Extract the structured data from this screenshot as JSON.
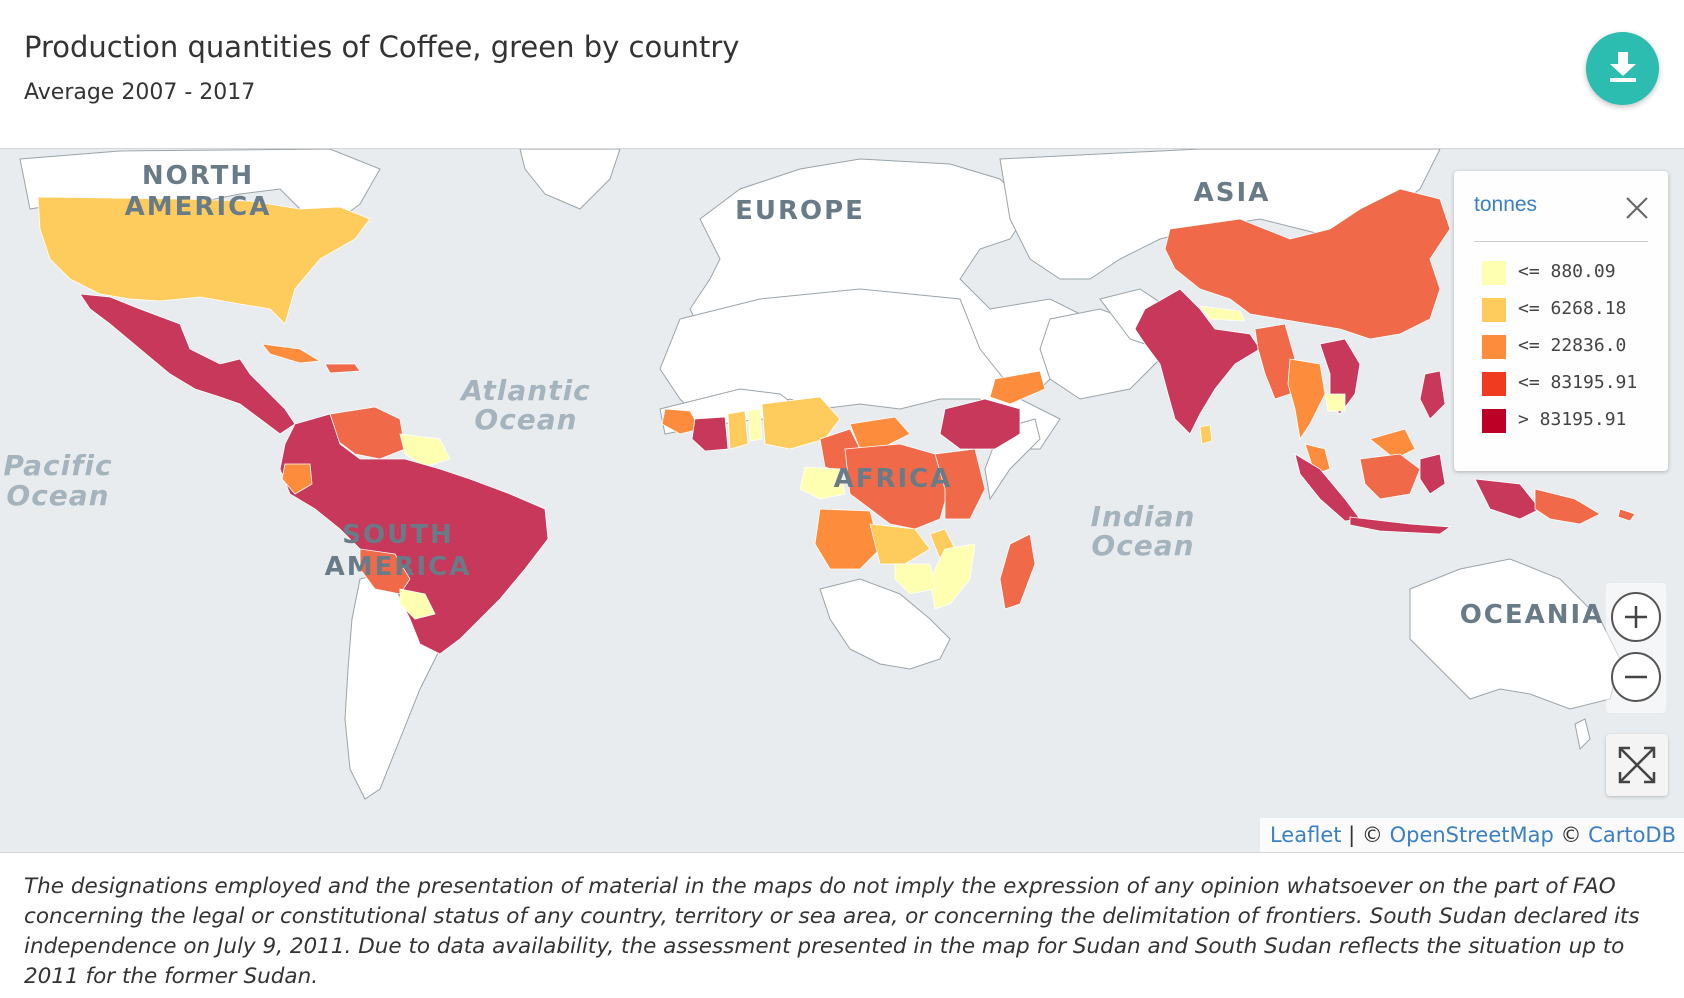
{
  "header": {
    "title": "Production quantities of Coffee, green by country",
    "subtitle": "Average 2007 - 2017",
    "download_icon": "download-icon"
  },
  "map": {
    "region_labels": {
      "north_america_1": "NORTH",
      "north_america_2": "AMERICA",
      "south_america_1": "SOUTH",
      "south_america_2": "AMERICA",
      "europe": "EUROPE",
      "africa": "AFRICA",
      "asia": "ASIA",
      "oceania": "OCEANIA"
    },
    "ocean_labels": {
      "atlantic_1": "Atlantic",
      "atlantic_2": "Ocean",
      "pacific_1": "Pacific",
      "pacific_2": "Ocean",
      "indian_1": "Indian",
      "indian_2": "Ocean"
    }
  },
  "legend": {
    "title": "tonnes",
    "close_icon": "close-icon",
    "items": [
      {
        "label": "<= 880.09",
        "color": "#ffffb2"
      },
      {
        "label": "<= 6268.18",
        "color": "#fecc5c"
      },
      {
        "label": "<= 22836.0",
        "color": "#fd8d3c"
      },
      {
        "label": "<= 83195.91",
        "color": "#f03b20"
      },
      {
        "label": "> 83195.91",
        "color": "#bd0026"
      }
    ]
  },
  "controls": {
    "zoom_in_icon": "plus-icon",
    "zoom_out_icon": "minus-icon",
    "fullscreen_icon": "fullscreen-icon"
  },
  "attribution": {
    "leaflet": "Leaflet",
    "sep": " | © ",
    "osm": "OpenStreetMap",
    "copy": " © ",
    "carto": "CartoDB"
  },
  "disclaimer": "The designations employed and the presentation of material in the maps do not imply the expression of any opinion whatsoever on the part of FAO concerning the legal or constitutional status of any country, territory or sea area, or concerning the delimitation of frontiers. South Sudan declared its independence on July 9, 2011. Due to data availability, the assessment presented in the map for Sudan and South Sudan reflects the situation up to 2011 for the former Sudan."
}
